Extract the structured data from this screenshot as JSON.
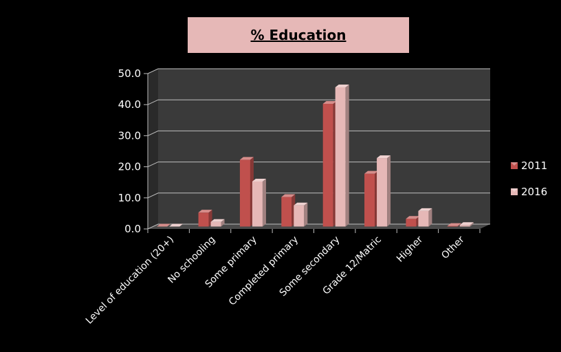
{
  "chart_data": {
    "type": "bar",
    "title": "% Education",
    "categories": [
      "Level of education (20+)",
      "No schooling",
      "Some primary",
      "Completed primary",
      "Some secondary",
      "Grade 12/Matric",
      "Higher",
      "Other"
    ],
    "series": [
      {
        "name": "2011",
        "values": [
          0,
          4.5,
          21.5,
          9.5,
          39.5,
          17.0,
          2.5,
          0.2
        ],
        "color": "#c0504d"
      },
      {
        "name": "2016",
        "values": [
          0,
          1.5,
          14.5,
          6.8,
          44.8,
          22.0,
          5.0,
          0.5
        ],
        "color": "#e6b8b7"
      }
    ],
    "yticks": [
      "0.0",
      "10.0",
      "20.0",
      "30.0",
      "40.0",
      "50.0"
    ],
    "ylim": [
      0,
      50
    ],
    "xlabel": "",
    "ylabel": "",
    "grid": true,
    "legend": "right",
    "background": "#000000",
    "plot_wall_color": "#3a3a3a"
  }
}
